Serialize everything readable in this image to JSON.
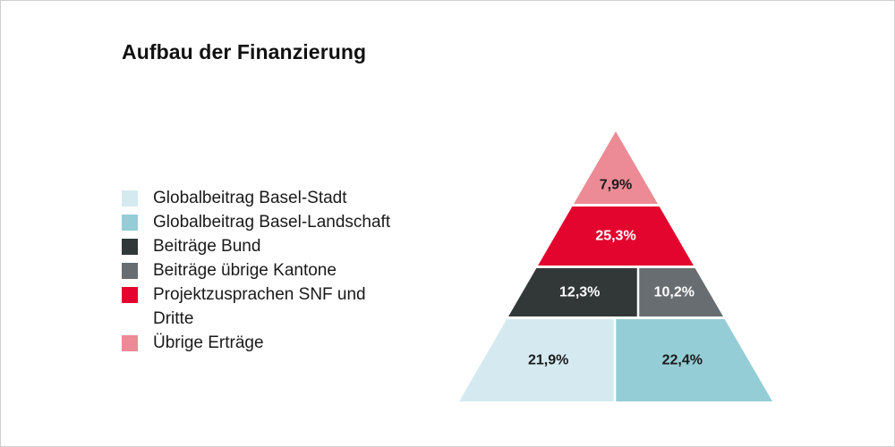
{
  "chart_data": {
    "type": "pyramid",
    "title": "Aufbau der Finanzierung",
    "segments": [
      {
        "key": "gb_bs",
        "label": "Globalbeitrag Basel-Stadt",
        "value": "21,9%",
        "color": "#d4eaf0",
        "text_color": "#1a1a1a"
      },
      {
        "key": "gb_bl",
        "label": "Globalbeitrag Basel-Landschaft",
        "value": "22,4%",
        "color": "#95cdd6",
        "text_color": "#1a1a1a"
      },
      {
        "key": "bund",
        "label": "Beiträge Bund",
        "value": "12,3%",
        "color": "#323738",
        "text_color": "#ffffff"
      },
      {
        "key": "kant",
        "label": "Beiträge übrige Kantone",
        "value": "10,2%",
        "color": "#676d70",
        "text_color": "#ffffff"
      },
      {
        "key": "snf",
        "label": "Projektzusprachen SNF und Dritte",
        "value": "25,3%",
        "color": "#e3052e",
        "text_color": "#ffffff"
      },
      {
        "key": "uebrig",
        "label": "Übrige Erträge",
        "value": "7,9%",
        "color": "#ec8b95",
        "text_color": "#1a1a1a"
      }
    ],
    "legend_order": [
      "gb_bs",
      "gb_bl",
      "bund",
      "kant",
      "snf",
      "uebrig"
    ],
    "tiers_bottom_to_top": [
      [
        "gb_bs",
        "gb_bl"
      ],
      [
        "bund",
        "kant"
      ],
      [
        "snf"
      ],
      [
        "uebrig"
      ]
    ]
  }
}
